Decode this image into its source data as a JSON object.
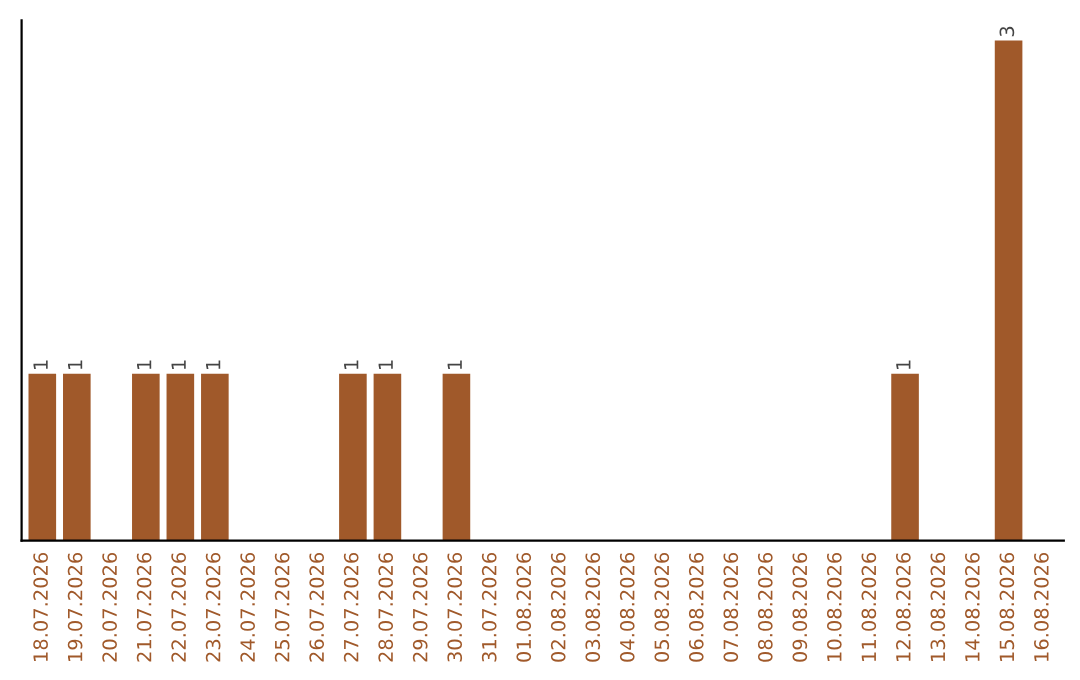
{
  "chart_data": {
    "type": "bar",
    "categories": [
      "18.07.2026",
      "19.07.2026",
      "20.07.2026",
      "21.07.2026",
      "22.07.2026",
      "23.07.2026",
      "24.07.2026",
      "25.07.2026",
      "26.07.2026",
      "27.07.2026",
      "28.07.2026",
      "29.07.2026",
      "30.07.2026",
      "31.07.2026",
      "01.08.2026",
      "02.08.2026",
      "03.08.2026",
      "04.08.2026",
      "05.08.2026",
      "06.08.2026",
      "07.08.2026",
      "08.08.2026",
      "09.08.2026",
      "10.08.2026",
      "11.08.2026",
      "12.08.2026",
      "13.08.2026",
      "14.08.2026",
      "15.08.2026",
      "16.08.2026"
    ],
    "values": [
      1,
      1,
      0,
      1,
      1,
      1,
      0,
      0,
      0,
      1,
      1,
      0,
      1,
      0,
      0,
      0,
      0,
      0,
      0,
      0,
      0,
      0,
      0,
      0,
      0,
      1,
      0,
      0,
      3,
      0
    ],
    "value_labels": [
      "1",
      "1",
      null,
      "1",
      "1",
      "1",
      null,
      null,
      null,
      "1",
      "1",
      null,
      "1",
      null,
      null,
      null,
      null,
      null,
      null,
      null,
      null,
      null,
      null,
      null,
      null,
      "1",
      null,
      null,
      "3",
      null
    ],
    "color": "#a0592a",
    "grid": false,
    "legend": false
  }
}
